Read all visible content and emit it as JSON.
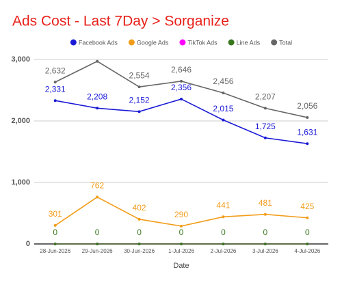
{
  "chart_data": {
    "type": "line",
    "title": "Ads Cost - Last 7Day > Sorganize",
    "x_label": "Date",
    "categories": [
      "28-Jun-2026",
      "29-Jun-2026",
      "30-Jun-2026",
      "1-Jul-2026",
      "2-Jul-2026",
      "3-Jul-2026",
      "4-Jul-2026"
    ],
    "series": [
      {
        "name": "Facebook Ads",
        "color": "#1a1ad6",
        "values": [
          2331,
          2208,
          2152,
          2356,
          2015,
          1725,
          1631
        ],
        "value_labels": [
          "2,331",
          "2,208",
          "2,152",
          "2,356",
          "2,015",
          "1,725",
          "1,631"
        ]
      },
      {
        "name": "Google Ads",
        "color": "#f29d1a",
        "values": [
          301,
          762,
          402,
          290,
          441,
          481,
          425
        ],
        "value_labels": [
          "301",
          "762",
          "402",
          "290",
          "441",
          "481",
          "425"
        ]
      },
      {
        "name": "TikTok Ads",
        "color": "#ff00ff",
        "values": [
          0,
          0,
          0,
          0,
          0,
          0,
          0
        ]
      },
      {
        "name": "Line Ads",
        "color": "#38761d",
        "values": [
          0,
          0,
          0,
          0,
          0,
          0,
          0
        ],
        "value_labels": [
          "0",
          "0",
          "0",
          "0",
          "0",
          "0",
          "0"
        ]
      },
      {
        "name": "Total",
        "color": "#666666",
        "values": [
          2632,
          2970,
          2554,
          2646,
          2456,
          2207,
          2056
        ],
        "value_labels": [
          "2,632",
          null,
          "2,554",
          "2,646",
          "2,456",
          "2,207",
          "2,056"
        ]
      }
    ],
    "ylim": [
      0,
      3000
    ],
    "yticks": [
      {
        "value": 0,
        "label": "0"
      },
      {
        "value": 1000,
        "label": "1,000"
      },
      {
        "value": 2000,
        "label": "2,000"
      },
      {
        "value": 3000,
        "label": "3,000"
      }
    ],
    "grid": true
  }
}
